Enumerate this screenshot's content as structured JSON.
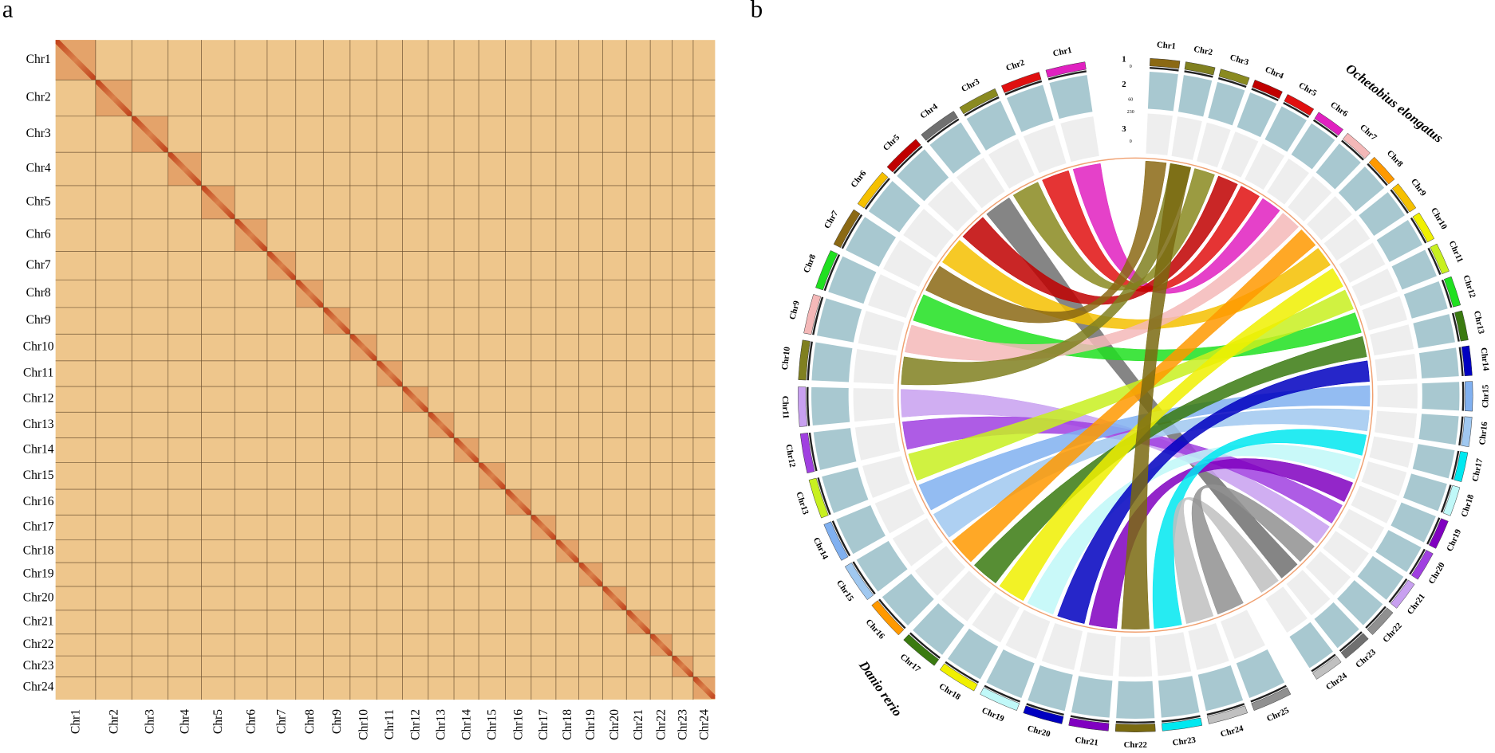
{
  "panels": {
    "a": {
      "label": "a",
      "rows": [
        "Chr1",
        "Chr2",
        "Chr3",
        "Chr4",
        "Chr5",
        "Chr6",
        "Chr7",
        "Chr8",
        "Chr9",
        "Chr10",
        "Chr11",
        "Chr12",
        "Chr13",
        "Chr14",
        "Chr15",
        "Chr16",
        "Chr17",
        "Chr18",
        "Chr19",
        "Chr20",
        "Chr21",
        "Chr22",
        "Chr23",
        "Chr24"
      ],
      "columns": [
        "Chr1",
        "Chr2",
        "Chr3",
        "Chr4",
        "Chr5",
        "Chr6",
        "Chr7",
        "Chr8",
        "Chr9",
        "Chr10",
        "Chr11",
        "Chr12",
        "Chr13",
        "Chr14",
        "Chr15",
        "Chr16",
        "Chr17",
        "Chr18",
        "Chr19",
        "Chr20",
        "Chr21",
        "Chr22",
        "Chr23",
        "Chr24"
      ]
    },
    "b": {
      "label": "b",
      "species": [
        "Ochetobius elongatus",
        "Danio rerio"
      ],
      "tracks": [
        "1",
        "2",
        "3"
      ],
      "track_scale": [
        "0",
        "60",
        "230",
        "0"
      ],
      "ochetobius_chromosomes": [
        "Chr1",
        "Chr2",
        "Chr3",
        "Chr4",
        "Chr5",
        "Chr6",
        "Chr7",
        "Chr8",
        "Chr9",
        "Chr10",
        "Chr11",
        "Chr12",
        "Chr13",
        "Chr14",
        "Chr15",
        "Chr16",
        "Chr17",
        "Chr18",
        "Chr19",
        "Chr20",
        "Chr21",
        "Chr22",
        "Chr23",
        "Chr24"
      ],
      "danio_chromosomes": [
        "Chr1",
        "Chr2",
        "Chr3",
        "Chr4",
        "Chr5",
        "Chr6",
        "Chr7",
        "Chr8",
        "Chr9",
        "Chr10",
        "Chr11",
        "Chr12",
        "Chr13",
        "Chr14",
        "Chr15",
        "Chr16",
        "Chr17",
        "Chr18",
        "Chr19",
        "Chr20",
        "Chr21",
        "Chr22",
        "Chr23",
        "Chr24",
        "Chr25"
      ]
    }
  }
}
